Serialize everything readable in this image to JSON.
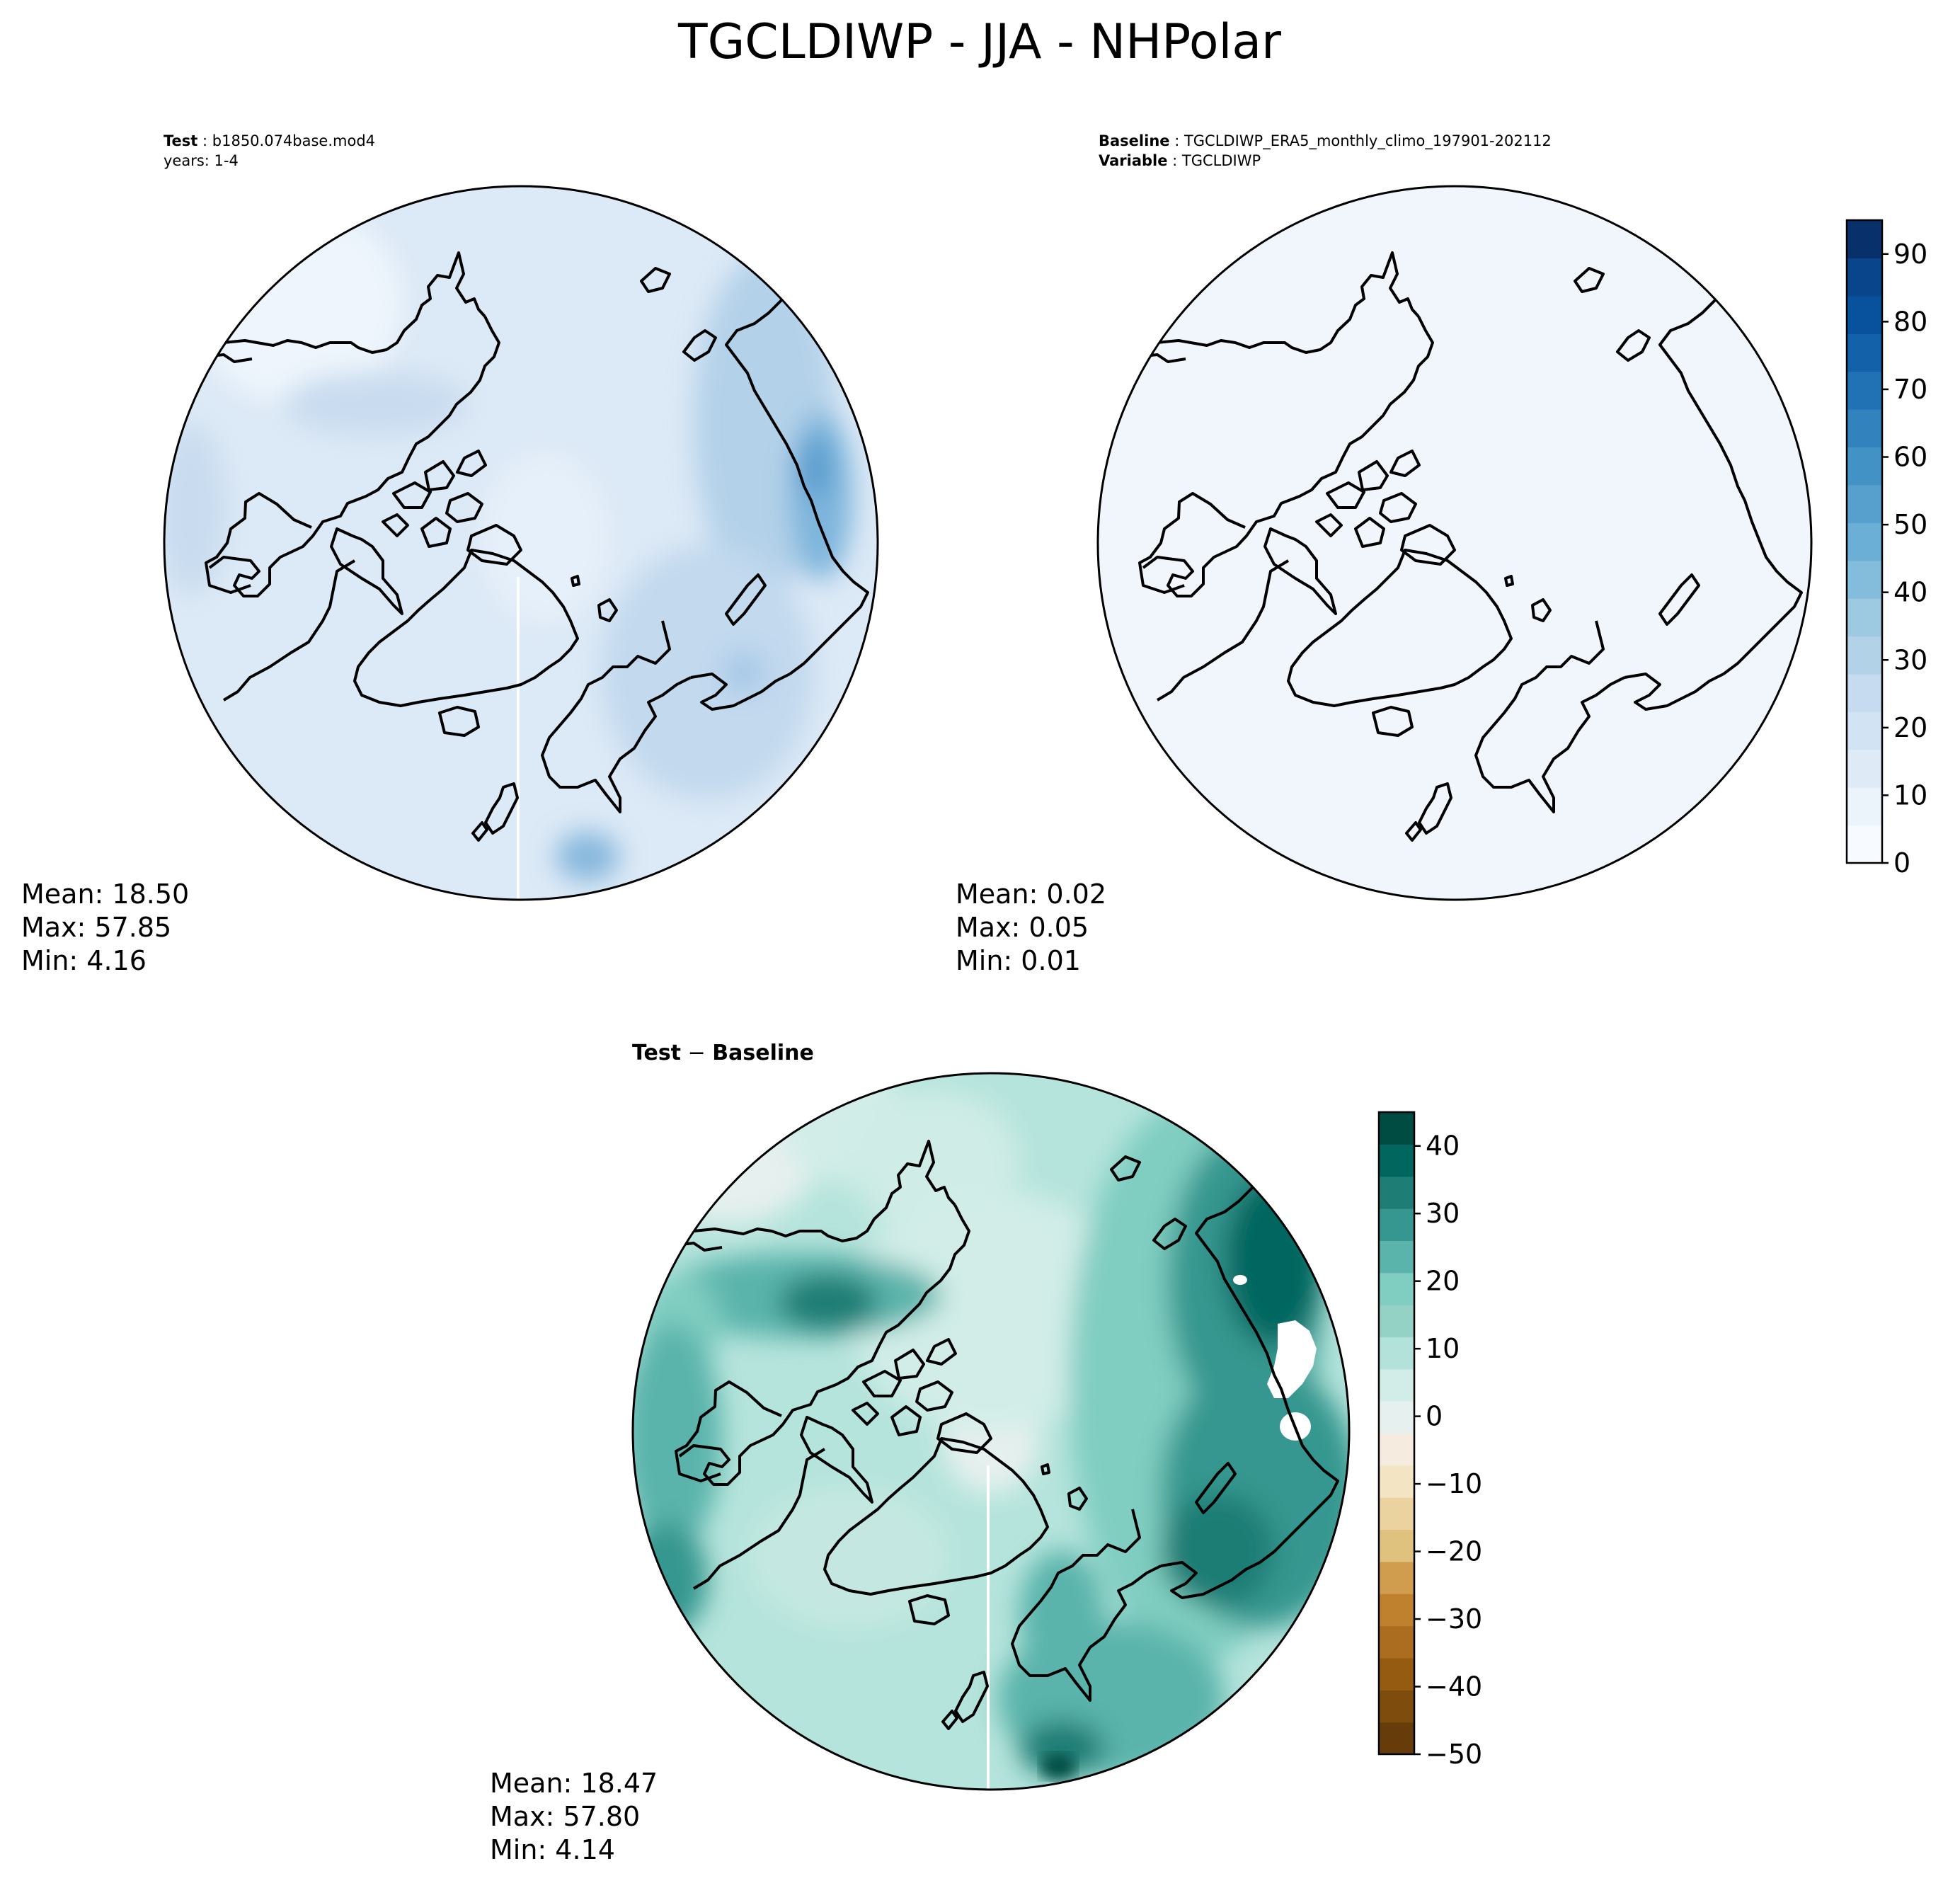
{
  "figure": {
    "title": "TGCLDIWP - JJA - NHPolar"
  },
  "panels": {
    "test": {
      "header_key": "Test",
      "header_value": "b1850.074base.mod4",
      "header_line2": "years: 1-4",
      "mean_label": "Mean: 18.50",
      "max_label": "Max: 57.85",
      "min_label": "Min:  4.16",
      "mean": 18.5,
      "max": 57.85,
      "min": 4.16
    },
    "baseline": {
      "header_key": "Baseline",
      "header_value": "TGCLDIWP_ERA5_monthly_climo_197901-202112",
      "header_key2": "Variable",
      "header_value2": "TGCLDIWP",
      "mean_label": "Mean:  0.02",
      "max_label": "Max:  0.05",
      "min_label": "Min:  0.01",
      "mean": 0.02,
      "max": 0.05,
      "min": 0.01
    },
    "diff": {
      "title_left": "Test",
      "title_op": " − ",
      "title_right": "Baseline",
      "mean_label": "Mean: 18.47",
      "max_label": "Max: 57.80",
      "min_label": "Min:  4.14",
      "mean": 18.47,
      "max": 57.8,
      "min": 4.14
    }
  },
  "colorbars": {
    "upper": {
      "colormap": "Blues",
      "range": [
        0,
        95
      ],
      "ticks": [
        "0",
        "10",
        "20",
        "30",
        "40",
        "50",
        "60",
        "70",
        "80",
        "90"
      ],
      "colors": [
        "#f7fbff",
        "#ebf3fb",
        "#deebf7",
        "#d2e3f3",
        "#c6dbef",
        "#b2d2e8",
        "#9ecae1",
        "#84bcdb",
        "#6baed6",
        "#57a0ce",
        "#4292c6",
        "#3182bd",
        "#2171b5",
        "#1361a9",
        "#08519c",
        "#08458a",
        "#08306b"
      ]
    },
    "diff": {
      "colormap": "BrBG",
      "range": [
        -50,
        45
      ],
      "ticks": [
        "−50",
        "−40",
        "−30",
        "−20",
        "−10",
        "0",
        "10",
        "20",
        "30",
        "40"
      ],
      "colors": [
        "#663c0a",
        "#7e4c0d",
        "#955c11",
        "#ab6d1f",
        "#bf812d",
        "#d09d4e",
        "#dfc27d",
        "#ebd3a0",
        "#f3e4c3",
        "#f5ecdf",
        "#e6f0ee",
        "#d2ede8",
        "#b2e2da",
        "#93d2c4",
        "#80cdc1",
        "#5ab4ab",
        "#35978f",
        "#1e7d74",
        "#01665e",
        "#014c42"
      ]
    }
  },
  "map_colors": {
    "test_ocean_base": "#dce9f6",
    "baseline_fill": "#f0f6fc",
    "diff_base": "#b5e4dc",
    "coastline": "#000000"
  }
}
